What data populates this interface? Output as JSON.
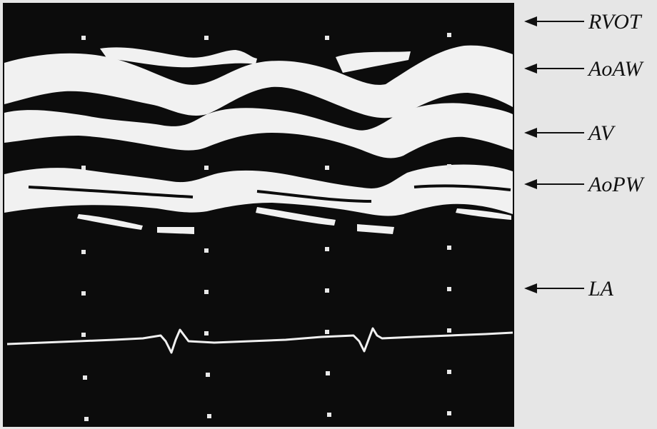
{
  "figure": {
    "labels": [
      {
        "id": "rvot",
        "text": "RVOT"
      },
      {
        "id": "aoaw",
        "text": "AoAW"
      },
      {
        "id": "av",
        "text": "AV"
      },
      {
        "id": "aopw",
        "text": "AoPW"
      },
      {
        "id": "la",
        "text": "LA"
      }
    ],
    "colors": {
      "background": "#0c0c0c",
      "echo": "#f2f2f2",
      "margin": "#e6e6e6",
      "ink": "#111111"
    }
  }
}
